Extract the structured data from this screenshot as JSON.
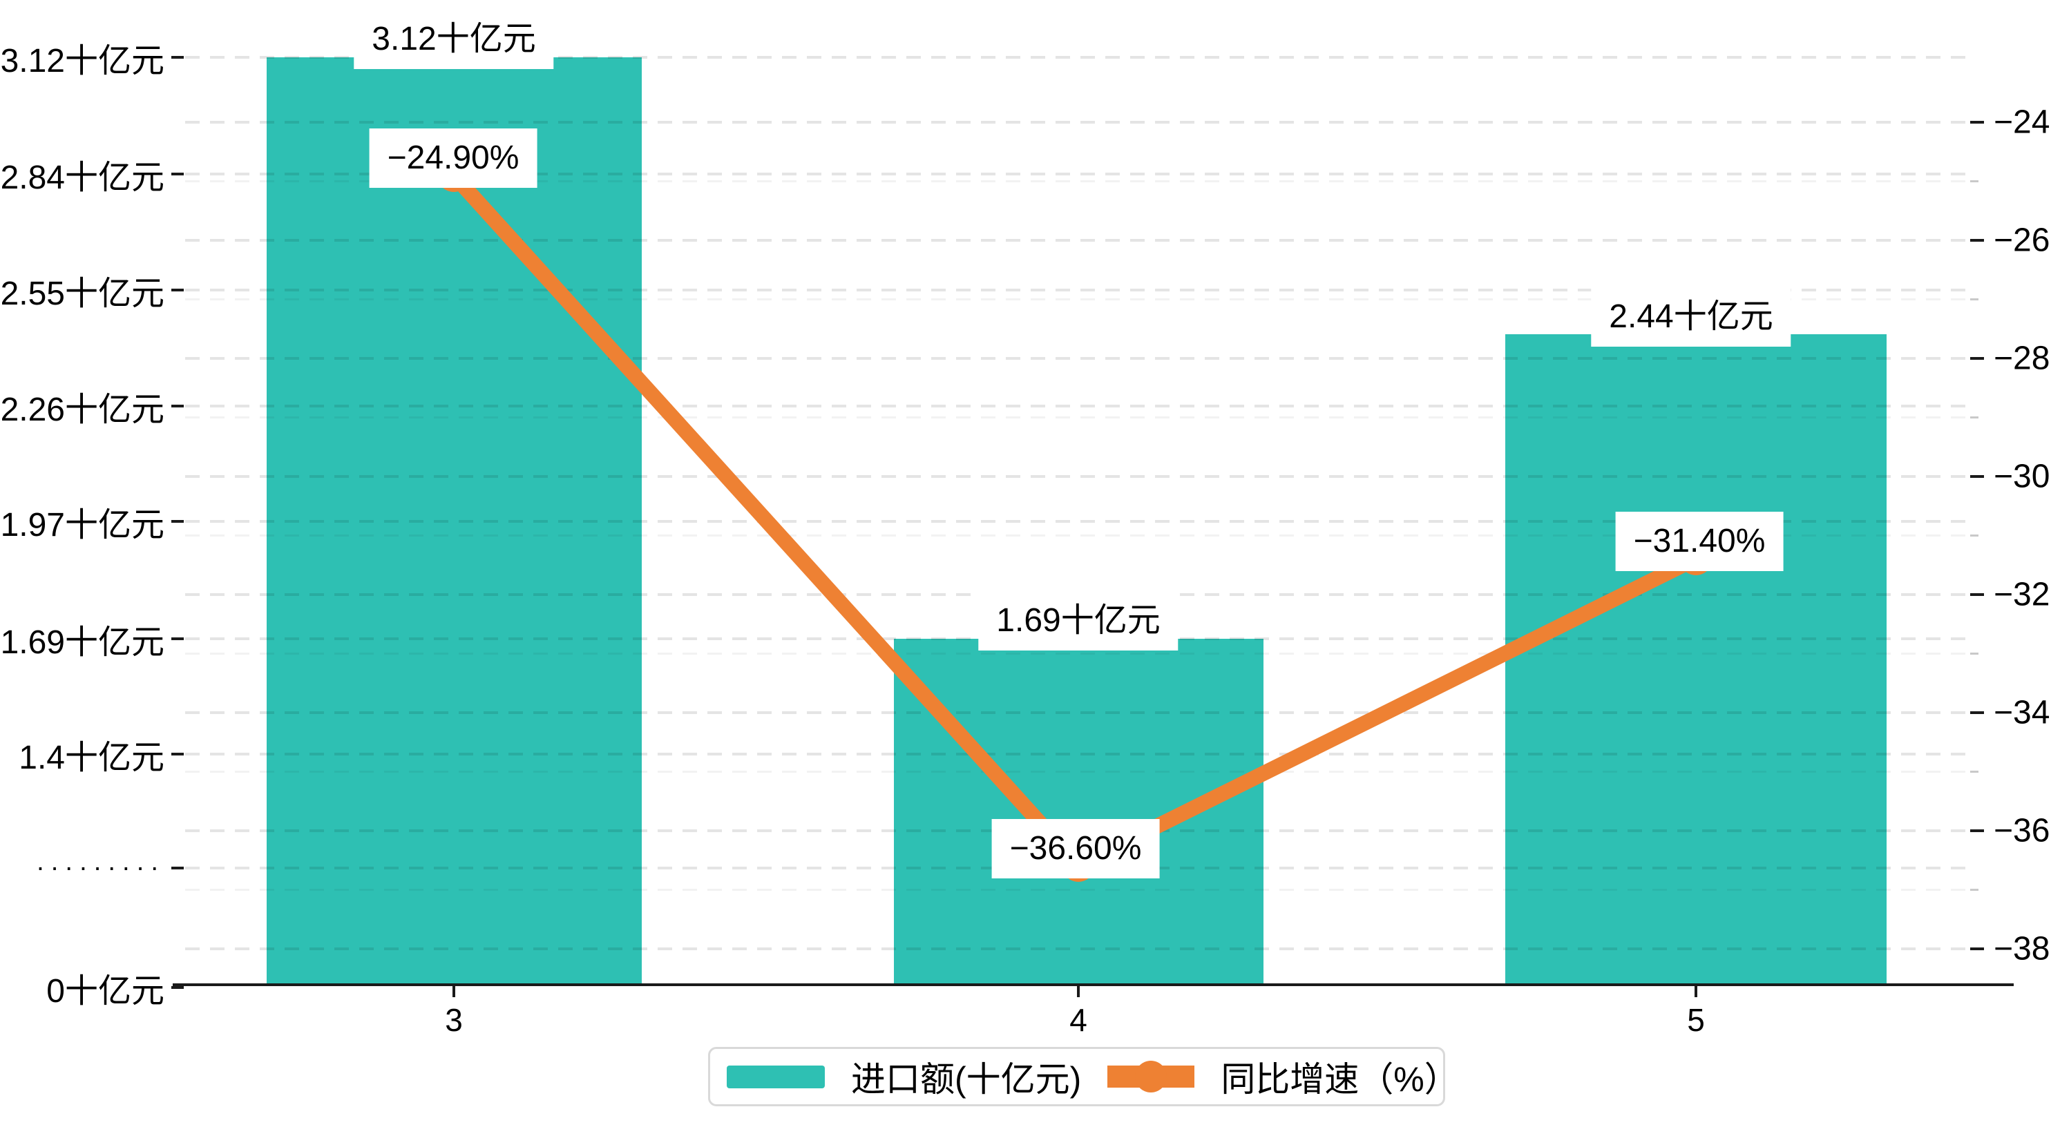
{
  "chart_data": {
    "type": "bar",
    "combo": "bar+line dual axis",
    "categories": [
      "3",
      "4",
      "5"
    ],
    "series": [
      {
        "name": "进口额(十亿元)",
        "type": "bar",
        "axis": "left",
        "unit": "十亿元",
        "values": [
          3.12,
          1.69,
          2.44
        ],
        "data_labels": [
          "3.12十亿元",
          "1.69十亿元",
          "2.44十亿元"
        ],
        "color": "#2EC0B3"
      },
      {
        "name": "同比增速（%）",
        "type": "line",
        "axis": "right",
        "unit": "%",
        "values": [
          -24.9,
          -36.6,
          -31.4
        ],
        "data_labels": [
          "−24.90%",
          "−36.60%",
          "−31.40%"
        ],
        "color": "#EE8133"
      }
    ],
    "left_axis": {
      "ticks_top_to_bottom": [
        "3.12十亿元",
        "2.84十亿元",
        "2.55十亿元",
        "2.26十亿元",
        "1.97十亿元",
        "1.69十亿元",
        "1.4十亿元",
        "·········",
        "0十亿元"
      ],
      "min_label": "0十亿元",
      "max_label": "3.12十亿元"
    },
    "right_axis": {
      "ticks_top_to_bottom": [
        "−24",
        "−26",
        "−28",
        "−30",
        "−32",
        "−34",
        "−36",
        "−38"
      ],
      "range": [
        -38,
        -24
      ]
    },
    "grid": "dashed horizontal gridlines for both axes",
    "legend_position": "bottom-center",
    "background": "#ffffff",
    "text_color": "#000000",
    "grid_color": "#e4e4e4"
  },
  "legend": {
    "items": [
      {
        "label": "进口额(十亿元)",
        "swatch_color": "#2EC0B3"
      },
      {
        "label": "同比增速（%）",
        "swatch_color": "#EE8133"
      }
    ]
  }
}
